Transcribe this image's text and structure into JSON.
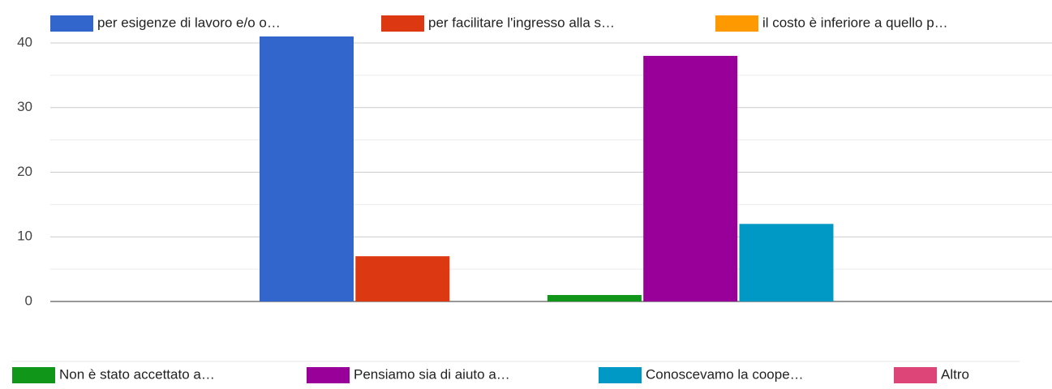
{
  "chart_data": {
    "type": "bar",
    "categories": [
      null
    ],
    "series": [
      {
        "name": "per esigenze di lavoro e/o o…",
        "color": "#3366cc",
        "values": [
          41
        ]
      },
      {
        "name": "per facilitare l'ingresso alla s…",
        "color": "#dc3912",
        "values": [
          7
        ]
      },
      {
        "name": "il costo è inferiore a quello p…",
        "color": "#ff9900",
        "values": [
          0
        ]
      },
      {
        "name": "Non è stato accettato a…",
        "color": "#109618",
        "values": [
          1
        ]
      },
      {
        "name": "Pensiamo sia di aiuto a…",
        "color": "#990099",
        "values": [
          38
        ]
      },
      {
        "name": "Conoscevamo la coope…",
        "color": "#0099c6",
        "values": [
          12
        ]
      },
      {
        "name": "Altro",
        "color": "#dd4477",
        "values": [
          0
        ]
      }
    ],
    "ylim": [
      0,
      41
    ],
    "yticks": [
      0,
      10,
      20,
      30,
      40
    ],
    "yminorticks": [
      5,
      15,
      25,
      35
    ],
    "grid": true
  }
}
